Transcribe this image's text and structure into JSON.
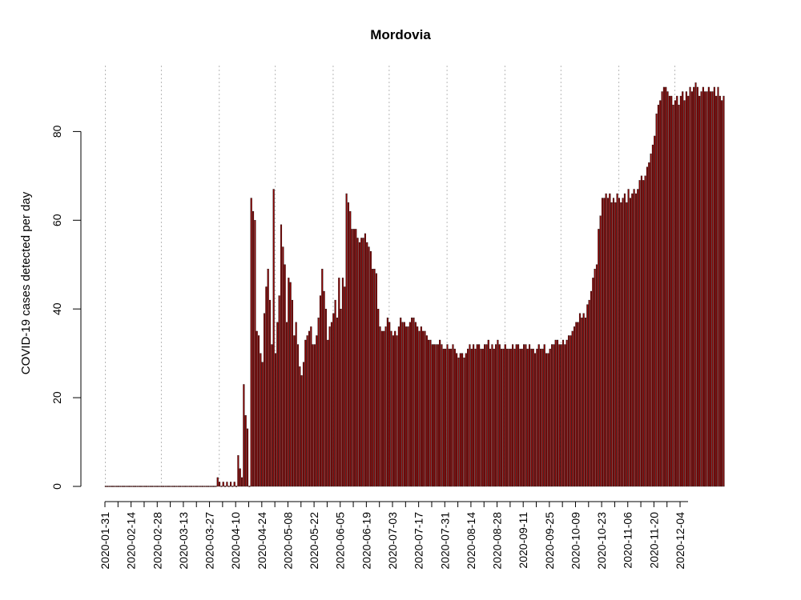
{
  "chart_data": {
    "type": "bar",
    "title": "Mordovia",
    "ylabel": "COVID-19 cases detected per day",
    "xlabel": "",
    "x_start": "2020-01-31",
    "x_end": "2020-12-12",
    "ylim": [
      0,
      93
    ],
    "yticks": [
      0,
      20,
      40,
      60,
      80
    ],
    "xticks": [
      "2020-01-31",
      "2020-02-14",
      "2020-02-28",
      "2020-03-13",
      "2020-03-27",
      "2020-04-10",
      "2020-04-24",
      "2020-05-08",
      "2020-05-22",
      "2020-06-05",
      "2020-06-19",
      "2020-07-03",
      "2020-07-17",
      "2020-07-31",
      "2020-08-14",
      "2020-08-28",
      "2020-09-11",
      "2020-09-25",
      "2020-10-09",
      "2020-10-23",
      "2020-11-06",
      "2020-11-20",
      "2020-12-04"
    ],
    "gridlines": [
      "2020-01-31",
      "2020-03-01",
      "2020-04-01",
      "2020-05-01",
      "2020-06-01",
      "2020-07-01",
      "2020-08-01",
      "2020-09-01",
      "2020-10-01",
      "2020-11-01",
      "2020-12-01"
    ],
    "grid": "vertical dotted at month starts",
    "bar_color": "#8B0000",
    "values": [
      0,
      0,
      0,
      0,
      0,
      0,
      0,
      0,
      0,
      0,
      0,
      0,
      0,
      0,
      0,
      0,
      0,
      0,
      0,
      0,
      0,
      0,
      0,
      0,
      0,
      0,
      0,
      0,
      0,
      0,
      0,
      0,
      0,
      0,
      0,
      0,
      0,
      0,
      0,
      0,
      0,
      0,
      0,
      0,
      0,
      0,
      0,
      0,
      0,
      0,
      0,
      0,
      0,
      0,
      0,
      0,
      0,
      0,
      0,
      0,
      2,
      1,
      0,
      1,
      0,
      1,
      0,
      1,
      0,
      1,
      0,
      7,
      4,
      2,
      23,
      16,
      13,
      0,
      65,
      62,
      60,
      35,
      34,
      30,
      28,
      39,
      45,
      49,
      42,
      32,
      67,
      30,
      37,
      43,
      59,
      54,
      50,
      37,
      47,
      46,
      42,
      34,
      37,
      32,
      27,
      25,
      28,
      33,
      34,
      35,
      36,
      32,
      32,
      34,
      38,
      43,
      49,
      44,
      40,
      33,
      36,
      37,
      39,
      42,
      38,
      47,
      40,
      47,
      45,
      66,
      64,
      62,
      58,
      58,
      58,
      56,
      55,
      56,
      56,
      57,
      55,
      54,
      53,
      49,
      49,
      48,
      40,
      36,
      35,
      35,
      36,
      38,
      37,
      35,
      34,
      35,
      34,
      36,
      38,
      37,
      37,
      36,
      36,
      37,
      38,
      38,
      37,
      36,
      35,
      36,
      35,
      35,
      34,
      33,
      33,
      32,
      32,
      32,
      32,
      33,
      32,
      31,
      31,
      32,
      31,
      31,
      32,
      31,
      30,
      29,
      30,
      30,
      29,
      30,
      31,
      32,
      31,
      32,
      31,
      32,
      32,
      31,
      31,
      32,
      32,
      33,
      31,
      32,
      31,
      32,
      33,
      32,
      31,
      31,
      32,
      31,
      31,
      31,
      32,
      31,
      32,
      32,
      31,
      31,
      32,
      32,
      31,
      32,
      31,
      31,
      30,
      31,
      32,
      31,
      31,
      32,
      30,
      30,
      31,
      32,
      32,
      33,
      33,
      32,
      32,
      33,
      32,
      33,
      34,
      34,
      35,
      36,
      37,
      37,
      39,
      38,
      39,
      38,
      41,
      42,
      44,
      47,
      49,
      50,
      58,
      61,
      65,
      65,
      66,
      65,
      66,
      64,
      65,
      64,
      66,
      65,
      64,
      65,
      66,
      64,
      67,
      65,
      66,
      67,
      66,
      67,
      69,
      70,
      69,
      70,
      72,
      73,
      75,
      77,
      79,
      84,
      86,
      87,
      89,
      90,
      90,
      89,
      88,
      88,
      86,
      87,
      88,
      86,
      88,
      89,
      87,
      89,
      88,
      90,
      89,
      90,
      91,
      90,
      88,
      89,
      90,
      89,
      89,
      90,
      89,
      89,
      90,
      88,
      90,
      88,
      87,
      88
    ]
  }
}
